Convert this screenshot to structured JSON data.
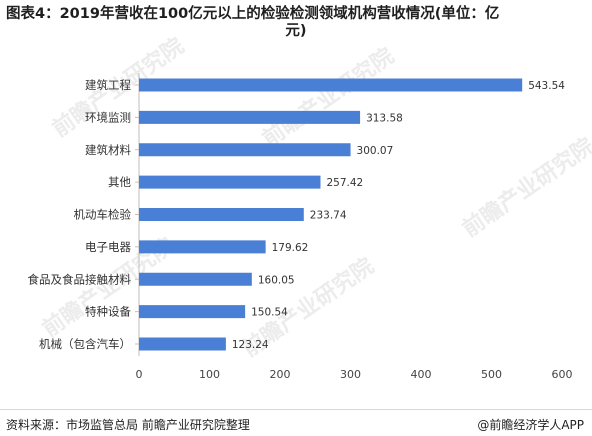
{
  "title": {
    "prefix": "图表4：",
    "text_line1": "2019年营收在100亿元以上的检验检测领域机构营收情况(单位：亿",
    "text_line2": "元)"
  },
  "footer": {
    "source": "资料来源：市场监管总局 前瞻产业研究院整理",
    "brand": "@前瞻经济学人APP"
  },
  "watermark": {
    "text": "前瞻产业研究院"
  },
  "colors": {
    "bar": "#4a7fd6"
  },
  "chart_data": {
    "type": "bar",
    "orientation": "horizontal",
    "categories": [
      "建筑工程",
      "环境监测",
      "建筑材料",
      "其他",
      "机动车检验",
      "电子电器",
      "食品及食品接触材料",
      "特种设备",
      "机械（包含汽车）"
    ],
    "values": [
      543.54,
      313.58,
      300.07,
      257.42,
      233.74,
      179.62,
      160.05,
      150.54,
      123.24
    ],
    "xlim": [
      0,
      600
    ],
    "xticks": [
      0,
      100,
      200,
      300,
      400,
      500,
      600
    ],
    "grid": false,
    "legend": "none"
  }
}
